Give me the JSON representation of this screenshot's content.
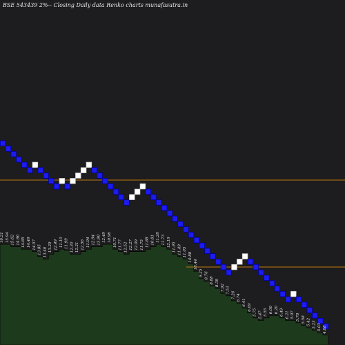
{
  "chart_data": {
    "type": "renko",
    "title": "BSE 543439 2%-- Closing Daily data  Renko  charts munafasutra.in",
    "colors": {
      "background": "#1d1c1e",
      "up_box": "#ffffff",
      "down_box": "#1d1cf0",
      "box_border": "#0000aa",
      "volume_fill": "#1d3a1c",
      "volume_outline": "#000000",
      "level_line": "#c07a10",
      "label_text": "#e6e6e6"
    },
    "reference_levels": [
      13.7,
      10.2
    ],
    "y_range": [
      3.9,
      17.6
    ],
    "bricks": [
      {
        "dir": "down",
        "label": "16.21"
      },
      {
        "dir": "down",
        "label": "15.94"
      },
      {
        "dir": "down",
        "label": "15.62"
      },
      {
        "dir": "down",
        "label": "14.96"
      },
      {
        "dir": "down",
        "label": "14.85"
      },
      {
        "dir": "down",
        "label": "14.49"
      },
      {
        "dir": "up",
        "label": "14.57"
      },
      {
        "dir": "down",
        "label": "13.85"
      },
      {
        "dir": "down",
        "label": "13.46"
      },
      {
        "dir": "down",
        "label": "13.29"
      },
      {
        "dir": "down",
        "label": "12.49"
      },
      {
        "dir": "up",
        "label": "11.10"
      },
      {
        "dir": "down",
        "label": "11.99"
      },
      {
        "dir": "up",
        "label": "12.30"
      },
      {
        "dir": "up",
        "label": "12.21"
      },
      {
        "dir": "up",
        "label": "12.56"
      },
      {
        "dir": "up",
        "label": "11.94"
      },
      {
        "dir": "down",
        "label": "12.94"
      },
      {
        "dir": "down",
        "label": "13.90"
      },
      {
        "dir": "down",
        "label": "12.49"
      },
      {
        "dir": "down",
        "label": "10.96"
      },
      {
        "dir": "down",
        "label": "10.71"
      },
      {
        "dir": "down",
        "label": "11.77"
      },
      {
        "dir": "down",
        "label": "12.52"
      },
      {
        "dir": "up",
        "label": "12.27"
      },
      {
        "dir": "up",
        "label": "12.09"
      },
      {
        "dir": "up",
        "label": "11.75"
      },
      {
        "dir": "down",
        "label": "11.88"
      },
      {
        "dir": "down",
        "label": "10.81"
      },
      {
        "dir": "down",
        "label": "11.28"
      },
      {
        "dir": "down",
        "label": "11.73"
      },
      {
        "dir": "down",
        "label": "12.19"
      },
      {
        "dir": "down",
        "label": "11.95"
      },
      {
        "dir": "down",
        "label": "11.49"
      },
      {
        "dir": "down",
        "label": "11.05"
      },
      {
        "dir": "down",
        "label": "10.88"
      },
      {
        "dir": "down",
        "label": "10.44"
      },
      {
        "dir": "down",
        "label": "9.25"
      },
      {
        "dir": "down",
        "label": "8.76"
      },
      {
        "dir": "down",
        "label": "8.88"
      },
      {
        "dir": "down",
        "label": "8.39"
      },
      {
        "dir": "down",
        "label": "7.92"
      },
      {
        "dir": "down",
        "label": "7.53"
      },
      {
        "dir": "up",
        "label": "7.26"
      },
      {
        "dir": "up",
        "label": "6.74"
      },
      {
        "dir": "up",
        "label": "6.41"
      },
      {
        "dir": "down",
        "label": "6.09"
      },
      {
        "dir": "down",
        "label": "5.75"
      },
      {
        "dir": "down",
        "label": "5.47"
      },
      {
        "dir": "down",
        "label": "5.55"
      },
      {
        "dir": "down",
        "label": "6.00"
      },
      {
        "dir": "down",
        "label": "6.20"
      },
      {
        "dir": "down",
        "label": "6.49"
      },
      {
        "dir": "down",
        "label": "6.21"
      },
      {
        "dir": "up",
        "label": "5.97"
      },
      {
        "dir": "down",
        "label": "5.78"
      },
      {
        "dir": "down",
        "label": "5.58"
      },
      {
        "dir": "down",
        "label": "5.42"
      },
      {
        "dir": "down",
        "label": "5.23"
      },
      {
        "dir": "down",
        "label": "5.03"
      },
      {
        "dir": "down",
        "label": "4.88"
      }
    ],
    "volume_profile": [
      0.82,
      0.82,
      0.8,
      0.8,
      0.78,
      0.78,
      0.76,
      0.72,
      0.7,
      0.74,
      0.76,
      0.78,
      0.77,
      0.74,
      0.74,
      0.76,
      0.78,
      0.8,
      0.8,
      0.82,
      0.82,
      0.78,
      0.76,
      0.74,
      0.76,
      0.76,
      0.76,
      0.78,
      0.8,
      0.82,
      0.8,
      0.78,
      0.74,
      0.72,
      0.7,
      0.66,
      0.6,
      0.54,
      0.52,
      0.48,
      0.46,
      0.42,
      0.4,
      0.36,
      0.34,
      0.3,
      0.26,
      0.22,
      0.2,
      0.22,
      0.24,
      0.24,
      0.22,
      0.2,
      0.2,
      0.18,
      0.16,
      0.14,
      0.12,
      0.1,
      0.08
    ]
  }
}
